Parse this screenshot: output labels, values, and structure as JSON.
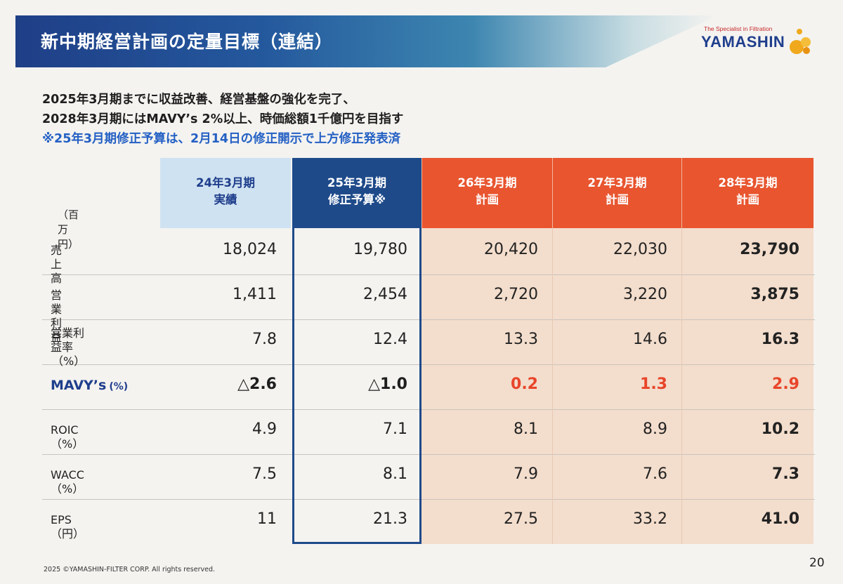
{
  "slide": {
    "title": "新中期経営計画の定量目標（連結）",
    "logo_tagline": "The Specialist in Filtration",
    "logo_word": "YAMASHIN",
    "subtitle_line1": "2025年3月期までに収益改善、経営基盤の強化を完了、",
    "subtitle_line2": "2028年3月期にはMAVY’s 2%以上、時価総額1千億円を目指す",
    "note": "※25年3月期修正予算は、2月14日の修正開示で上方修正発表済",
    "footer": "2025 ©YAMASHIN-FILTER CORP. All rights reserved.",
    "page_number": "20"
  },
  "table": {
    "unit": "（百万円）",
    "columns": [
      {
        "line1": "24年3月期",
        "line2": "実績"
      },
      {
        "line1": "25年3月期",
        "line2": "修正予算※"
      },
      {
        "line1": "26年3月期",
        "line2": "計画"
      },
      {
        "line1": "27年3月期",
        "line2": "計画"
      },
      {
        "line1": "28年3月期",
        "line2": "計画"
      }
    ],
    "rows": [
      {
        "label1": "売上高",
        "label2": "",
        "values": [
          "18,024",
          "19,780",
          "20,420",
          "22,030",
          "23,790"
        ]
      },
      {
        "label1": "営業利益",
        "label2": "",
        "values": [
          "1,411",
          "2,454",
          "2,720",
          "3,220",
          "3,875"
        ]
      },
      {
        "label1": "営業利益率",
        "label2": "（%）",
        "values": [
          "7.8",
          "12.4",
          "13.3",
          "14.6",
          "16.3"
        ]
      },
      {
        "label1": "MAVY’s",
        "label2": "(%)",
        "values": [
          "△2.6",
          "△1.0",
          "0.2",
          "1.3",
          "2.9"
        ]
      },
      {
        "label1": "ROIC（%）",
        "label2": "",
        "values": [
          "4.9",
          "7.1",
          "8.1",
          "8.9",
          "10.2"
        ]
      },
      {
        "label1": "WACC（%）",
        "label2": "",
        "values": [
          "7.5",
          "8.1",
          "7.9",
          "7.6",
          "7.3"
        ]
      },
      {
        "label1": "EPS（円）",
        "label2": "",
        "values": [
          "11",
          "21.3",
          "27.5",
          "33.2",
          "41.0"
        ]
      }
    ]
  },
  "colors": {
    "actual_header": "#cfe2f1",
    "budget_header": "#1e4a8a",
    "plan_header": "#e8552f",
    "plan_body": "#f3ddcc",
    "mavys_label": "#1f3e8c",
    "mavys_plan": "#e8452a"
  }
}
